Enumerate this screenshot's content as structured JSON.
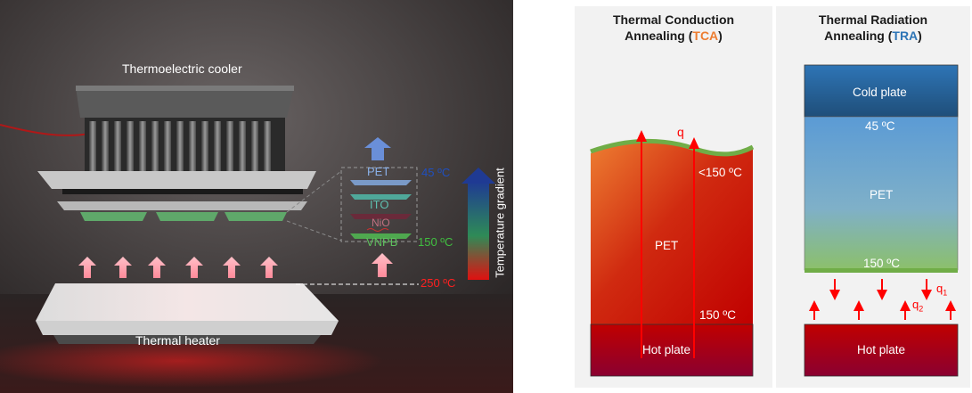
{
  "left_figure": {
    "cooler_label": "Thermoelectric cooler",
    "heater_label": "Thermal heater",
    "layers": [
      "PET",
      "ITO",
      "NiO",
      "VNPB"
    ],
    "temp_top": "45 ºC",
    "temp_mid": "150 ºC",
    "temp_bottom": "250 ºC",
    "gradient_label": "Temperature gradient"
  },
  "tca_panel": {
    "title_line1": "Thermal Conduction",
    "title_line2_prefix": "Annealing (",
    "title_abbr": "TCA",
    "title_line2_suffix": ")",
    "heat_symbol": "q",
    "top_temp": "<150 ºC",
    "layer_label": "PET",
    "bottom_temp": "150 ºC",
    "hot_plate_label": "Hot plate"
  },
  "tra_panel": {
    "title_line1": "Thermal Radiation",
    "title_line2_prefix": "Annealing (",
    "title_abbr": "TRA",
    "title_line2_suffix": ")",
    "cold_plate_label": "Cold plate",
    "top_temp": "45 ºC",
    "layer_label": "PET",
    "bottom_temp": "150 ºC",
    "q1_label": "q",
    "q1_sub": "1",
    "q2_label": "q",
    "q2_sub": "2",
    "hot_plate_label": "Hot plate"
  },
  "colors": {
    "tca_accent": "#ed7d31",
    "tra_accent": "#2e75b6",
    "arrow_red": "#ff0000",
    "hot_plate": "#c00000",
    "green_film": "#70ad47",
    "cold_plate": "#1f4e79"
  }
}
